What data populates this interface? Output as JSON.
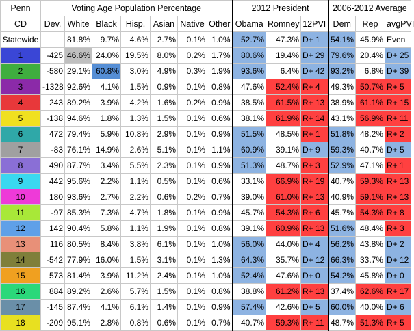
{
  "header_top": {
    "state": "Penn",
    "vap": "Voting Age Population Percentage",
    "president": "2012 President",
    "average": "2006-2012 Average"
  },
  "header_cols": [
    "CD",
    "Dev.",
    "White",
    "Black",
    "Hisp.",
    "Asian",
    "Native",
    "Other",
    "Obama",
    "Romney",
    "12PVI",
    "Dem",
    "Rep",
    "avgPVI"
  ],
  "colors": {
    "dem_blue": "#8db3e2",
    "rep_red": "#ff4040",
    "highlight_gray": "#bfbfbf",
    "highlight_blue": "#558ed5"
  },
  "rows": [
    {
      "cd": "Statewide",
      "cd_color": "#ffffff",
      "dev": "",
      "white": "81.8%",
      "black": "9.7%",
      "hisp": "4.6%",
      "asian": "2.7%",
      "native": "0.1%",
      "other": "1.0%",
      "obama": "52.7%",
      "romney": "47.3%",
      "pvi12": "D+ 1",
      "dem": "54.1%",
      "rep": "45.9%",
      "avgpvi": "Even",
      "p_winner": "D",
      "a_winner": "D",
      "pvi12_color": "D",
      "avgpvi_color": "none"
    },
    {
      "cd": "1",
      "cd_color": "#3a46d6",
      "dev": "-425",
      "white": "46.6%",
      "black": "24.0%",
      "hisp": "19.5%",
      "asian": "8.0%",
      "native": "0.2%",
      "other": "1.7%",
      "obama": "80.6%",
      "romney": "19.4%",
      "pvi12": "D+ 29",
      "dem": "79.6%",
      "rep": "20.4%",
      "avgpvi": "D+ 25",
      "p_winner": "D",
      "a_winner": "D",
      "pvi12_color": "D",
      "avgpvi_color": "D",
      "white_hl": "gray"
    },
    {
      "cd": "2",
      "cd_color": "#3fae3f",
      "dev": "-580",
      "white": "29.1%",
      "black": "60.8%",
      "hisp": "3.0%",
      "asian": "4.9%",
      "native": "0.3%",
      "other": "1.9%",
      "obama": "93.6%",
      "romney": "6.4%",
      "pvi12": "D+ 42",
      "dem": "93.2%",
      "rep": "6.8%",
      "avgpvi": "D+ 39",
      "p_winner": "D",
      "a_winner": "D",
      "pvi12_color": "D",
      "avgpvi_color": "D",
      "black_hl": "blue"
    },
    {
      "cd": "3",
      "cd_color": "#8b2aa8",
      "dev": "-1328",
      "white": "92.6%",
      "black": "4.1%",
      "hisp": "1.5%",
      "asian": "0.9%",
      "native": "0.1%",
      "other": "0.8%",
      "obama": "47.6%",
      "romney": "52.4%",
      "pvi12": "R+ 4",
      "dem": "49.3%",
      "rep": "50.7%",
      "avgpvi": "R+ 5",
      "p_winner": "R",
      "a_winner": "R",
      "pvi12_color": "R",
      "avgpvi_color": "R"
    },
    {
      "cd": "4",
      "cd_color": "#e8383a",
      "dev": "243",
      "white": "89.2%",
      "black": "3.9%",
      "hisp": "4.2%",
      "asian": "1.6%",
      "native": "0.2%",
      "other": "0.9%",
      "obama": "38.5%",
      "romney": "61.5%",
      "pvi12": "R+ 13",
      "dem": "38.9%",
      "rep": "61.1%",
      "avgpvi": "R+ 15",
      "p_winner": "R",
      "a_winner": "R",
      "pvi12_color": "R",
      "avgpvi_color": "R"
    },
    {
      "cd": "5",
      "cd_color": "#f0e020",
      "dev": "-138",
      "white": "94.6%",
      "black": "1.8%",
      "hisp": "1.3%",
      "asian": "1.5%",
      "native": "0.1%",
      "other": "0.6%",
      "obama": "38.1%",
      "romney": "61.9%",
      "pvi12": "R+ 14",
      "dem": "43.1%",
      "rep": "56.9%",
      "avgpvi": "R+ 11",
      "p_winner": "R",
      "a_winner": "R",
      "pvi12_color": "R",
      "avgpvi_color": "R"
    },
    {
      "cd": "6",
      "cd_color": "#2fa8a8",
      "dev": "472",
      "white": "79.4%",
      "black": "5.9%",
      "hisp": "10.8%",
      "asian": "2.9%",
      "native": "0.1%",
      "other": "0.9%",
      "obama": "51.5%",
      "romney": "48.5%",
      "pvi12": "R+ 1",
      "dem": "51.8%",
      "rep": "48.2%",
      "avgpvi": "R+ 2",
      "p_winner": "D",
      "a_winner": "D",
      "pvi12_color": "R",
      "avgpvi_color": "R"
    },
    {
      "cd": "7",
      "cd_color": "#a0a0a0",
      "dev": "-83",
      "white": "76.1%",
      "black": "14.9%",
      "hisp": "2.6%",
      "asian": "5.1%",
      "native": "0.1%",
      "other": "1.1%",
      "obama": "60.9%",
      "romney": "39.1%",
      "pvi12": "D+ 9",
      "dem": "59.3%",
      "rep": "40.7%",
      "avgpvi": "D+ 5",
      "p_winner": "D",
      "a_winner": "D",
      "pvi12_color": "D",
      "avgpvi_color": "D"
    },
    {
      "cd": "8",
      "cd_color": "#8a6fd6",
      "dev": "490",
      "white": "87.7%",
      "black": "3.4%",
      "hisp": "5.5%",
      "asian": "2.3%",
      "native": "0.1%",
      "other": "0.9%",
      "obama": "51.3%",
      "romney": "48.7%",
      "pvi12": "R+ 3",
      "dem": "52.9%",
      "rep": "47.1%",
      "avgpvi": "R+ 1",
      "p_winner": "D",
      "a_winner": "D",
      "pvi12_color": "R",
      "avgpvi_color": "R"
    },
    {
      "cd": "9",
      "cd_color": "#3ad8f0",
      "dev": "442",
      "white": "95.6%",
      "black": "2.2%",
      "hisp": "1.1%",
      "asian": "0.5%",
      "native": "0.1%",
      "other": "0.6%",
      "obama": "33.1%",
      "romney": "66.9%",
      "pvi12": "R+ 19",
      "dem": "40.7%",
      "rep": "59.3%",
      "avgpvi": "R+ 13",
      "p_winner": "R",
      "a_winner": "R",
      "pvi12_color": "R",
      "avgpvi_color": "R"
    },
    {
      "cd": "10",
      "cd_color": "#ee3ad8",
      "dev": "180",
      "white": "93.6%",
      "black": "2.7%",
      "hisp": "2.2%",
      "asian": "0.6%",
      "native": "0.2%",
      "other": "0.7%",
      "obama": "39.0%",
      "romney": "61.0%",
      "pvi12": "R+ 13",
      "dem": "40.9%",
      "rep": "59.1%",
      "avgpvi": "R+ 13",
      "p_winner": "R",
      "a_winner": "R",
      "pvi12_color": "R",
      "avgpvi_color": "R"
    },
    {
      "cd": "11",
      "cd_color": "#a8e838",
      "dev": "-97",
      "white": "85.3%",
      "black": "7.3%",
      "hisp": "4.7%",
      "asian": "1.8%",
      "native": "0.1%",
      "other": "0.9%",
      "obama": "45.7%",
      "romney": "54.3%",
      "pvi12": "R+ 6",
      "dem": "45.7%",
      "rep": "54.3%",
      "avgpvi": "R+ 8",
      "p_winner": "R",
      "a_winner": "R",
      "pvi12_color": "R",
      "avgpvi_color": "R"
    },
    {
      "cd": "12",
      "cd_color": "#5fa0e8",
      "dev": "142",
      "white": "90.4%",
      "black": "5.8%",
      "hisp": "1.1%",
      "asian": "1.9%",
      "native": "0.1%",
      "other": "0.8%",
      "obama": "39.1%",
      "romney": "60.9%",
      "pvi12": "R+ 13",
      "dem": "51.6%",
      "rep": "48.4%",
      "avgpvi": "R+ 3",
      "p_winner": "R",
      "a_winner": "D",
      "pvi12_color": "R",
      "avgpvi_color": "R"
    },
    {
      "cd": "13",
      "cd_color": "#e89078",
      "dev": "116",
      "white": "80.5%",
      "black": "8.4%",
      "hisp": "3.8%",
      "asian": "6.1%",
      "native": "0.1%",
      "other": "1.0%",
      "obama": "56.0%",
      "romney": "44.0%",
      "pvi12": "D+ 4",
      "dem": "56.2%",
      "rep": "43.8%",
      "avgpvi": "D+ 2",
      "p_winner": "D",
      "a_winner": "D",
      "pvi12_color": "D",
      "avgpvi_color": "D"
    },
    {
      "cd": "14",
      "cd_color": "#7f7f3a",
      "dev": "-542",
      "white": "77.9%",
      "black": "16.0%",
      "hisp": "1.5%",
      "asian": "3.1%",
      "native": "0.1%",
      "other": "1.3%",
      "obama": "64.3%",
      "romney": "35.7%",
      "pvi12": "D+ 12",
      "dem": "66.3%",
      "rep": "33.7%",
      "avgpvi": "D+ 12",
      "p_winner": "D",
      "a_winner": "D",
      "pvi12_color": "D",
      "avgpvi_color": "D"
    },
    {
      "cd": "15",
      "cd_color": "#f0a020",
      "dev": "573",
      "white": "81.4%",
      "black": "3.9%",
      "hisp": "11.2%",
      "asian": "2.4%",
      "native": "0.1%",
      "other": "1.0%",
      "obama": "52.4%",
      "romney": "47.6%",
      "pvi12": "D+ 0",
      "dem": "54.2%",
      "rep": "45.8%",
      "avgpvi": "D+ 0",
      "p_winner": "D",
      "a_winner": "D",
      "pvi12_color": "D",
      "avgpvi_color": "D"
    },
    {
      "cd": "16",
      "cd_color": "#2ad87a",
      "dev": "884",
      "white": "89.2%",
      "black": "2.6%",
      "hisp": "5.7%",
      "asian": "1.5%",
      "native": "0.1%",
      "other": "0.8%",
      "obama": "38.8%",
      "romney": "61.2%",
      "pvi12": "R+ 13",
      "dem": "37.4%",
      "rep": "62.6%",
      "avgpvi": "R+ 17",
      "p_winner": "R",
      "a_winner": "R",
      "pvi12_color": "R",
      "avgpvi_color": "R"
    },
    {
      "cd": "17",
      "cd_color": "#6a8fa8",
      "dev": "-145",
      "white": "87.4%",
      "black": "4.1%",
      "hisp": "6.1%",
      "asian": "1.4%",
      "native": "0.1%",
      "other": "0.9%",
      "obama": "57.4%",
      "romney": "42.6%",
      "pvi12": "D+ 5",
      "dem": "60.0%",
      "rep": "40.0%",
      "avgpvi": "D+ 6",
      "p_winner": "D",
      "a_winner": "D",
      "pvi12_color": "D",
      "avgpvi_color": "D"
    },
    {
      "cd": "18",
      "cd_color": "#e8e020",
      "dev": "-209",
      "white": "95.1%",
      "black": "2.8%",
      "hisp": "0.8%",
      "asian": "0.6%",
      "native": "0.1%",
      "other": "0.7%",
      "obama": "40.7%",
      "romney": "59.3%",
      "pvi12": "R+ 11",
      "dem": "48.7%",
      "rep": "51.3%",
      "avgpvi": "R+ 5",
      "p_winner": "R",
      "a_winner": "R",
      "pvi12_color": "R",
      "avgpvi_color": "R"
    }
  ]
}
